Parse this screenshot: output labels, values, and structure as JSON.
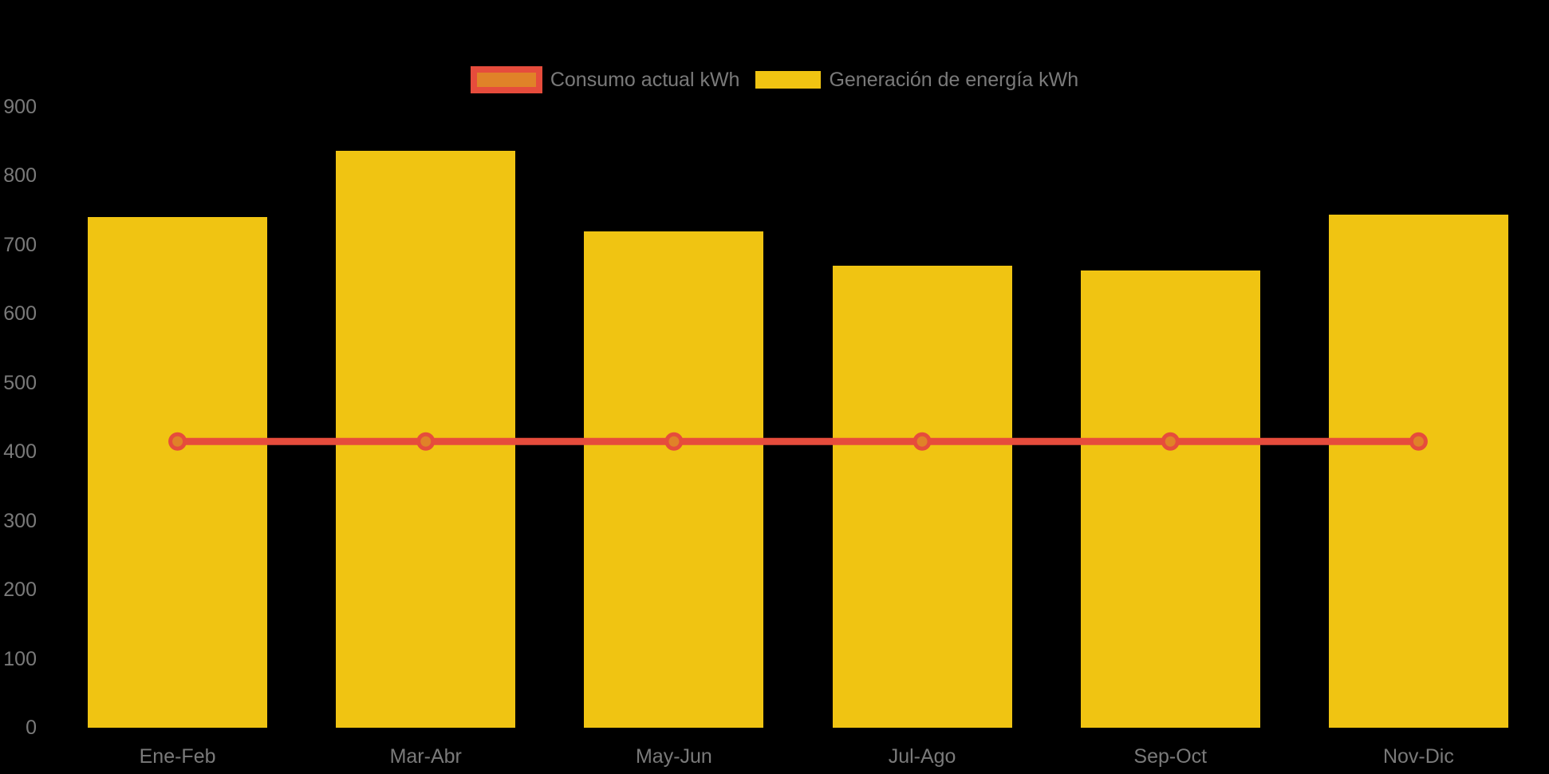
{
  "background": "#000000",
  "text_color": "#7A7A7A",
  "legend": {
    "items": [
      {
        "label": "Consumo actual kWh",
        "series_type": "line",
        "swatch_fill": "#E08228",
        "swatch_border": "#E64C3C"
      },
      {
        "label": "Generación de energía kWh",
        "series_type": "bar",
        "swatch_fill": "#F0C412"
      }
    ]
  },
  "chart_data": {
    "type": "bar",
    "title": "",
    "xlabel": "",
    "ylabel": "",
    "categories": [
      "Ene-Feb",
      "Mar-Abr",
      "May-Jun",
      "Jul-Ago",
      "Sep-Oct",
      "Nov-Dic"
    ],
    "series": [
      {
        "name": "Generación de energía kWh",
        "type": "bar",
        "color": "#F0C412",
        "values": [
          740,
          836,
          720,
          670,
          663,
          744
        ]
      },
      {
        "name": "Consumo actual kWh",
        "type": "line",
        "color": "#E64C3C",
        "marker_fill": "#E08228",
        "values": [
          415,
          415,
          415,
          415,
          415,
          415
        ]
      }
    ],
    "ylim": [
      0,
      900
    ],
    "yticks": [
      0,
      100,
      200,
      300,
      400,
      500,
      600,
      700,
      800,
      900
    ],
    "grid": false,
    "legend_position": "top",
    "background": "transparent-black"
  }
}
